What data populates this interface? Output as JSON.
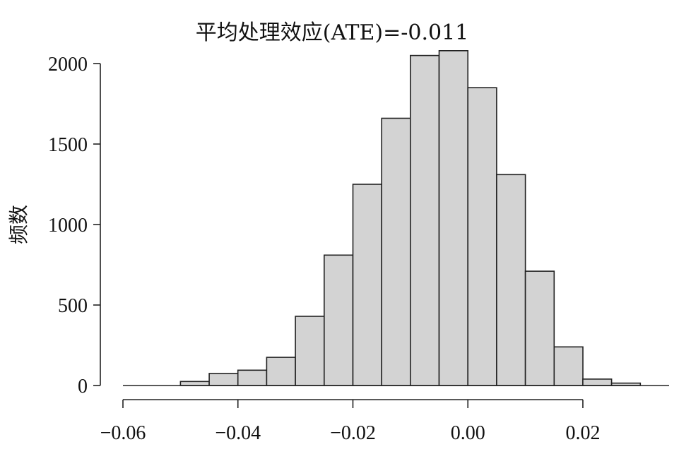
{
  "chart_data": {
    "type": "bar",
    "title": "平均处理效应(ATE)=-0.011",
    "xlabel": "",
    "ylabel": "频数",
    "bin_width": 0.005,
    "bin_starts": [
      -0.055,
      -0.05,
      -0.045,
      -0.04,
      -0.035,
      -0.03,
      -0.025,
      -0.02,
      -0.015,
      -0.01,
      -0.005,
      0.0,
      0.005,
      0.01,
      0.015,
      0.02,
      0.025
    ],
    "values": [
      0,
      25,
      75,
      95,
      175,
      430,
      810,
      1250,
      1660,
      2050,
      2080,
      1850,
      1310,
      710,
      240,
      40,
      15
    ],
    "xlim": [
      -0.06,
      0.035
    ],
    "ylim": [
      0,
      2100
    ],
    "x_ticks": [
      -0.06,
      -0.04,
      -0.02,
      0.0,
      0.02
    ],
    "x_tick_labels": [
      "−0.06",
      "−0.04",
      "−0.02",
      "0.00",
      "0.02"
    ],
    "y_ticks": [
      0,
      500,
      1000,
      1500,
      2000
    ],
    "y_tick_labels": [
      "0",
      "500",
      "1000",
      "1500",
      "2000"
    ],
    "grid": false,
    "colors": {
      "bar_fill": "#d3d3d3",
      "bar_stroke": "#222222",
      "axis": "#222222",
      "text": "#111111"
    }
  }
}
